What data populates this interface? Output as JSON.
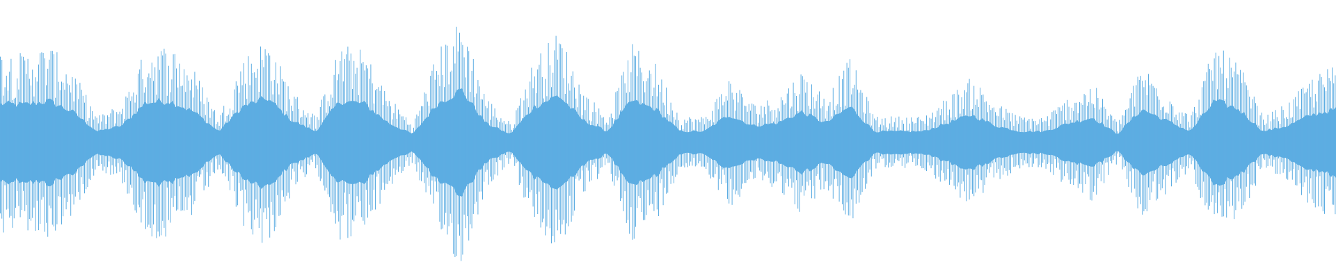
{
  "waveform": {
    "color": "#5dade2",
    "background": "#ffffff",
    "envelope_samples": [
      0.7,
      0.68,
      0.75,
      0.55,
      0.2,
      0.3,
      0.72,
      0.75,
      0.55,
      0.2,
      0.65,
      0.8,
      0.4,
      0.2,
      0.75,
      0.7,
      0.35,
      0.15,
      0.7,
      0.95,
      0.35,
      0.15,
      0.65,
      0.85,
      0.4,
      0.2,
      0.75,
      0.6,
      0.2,
      0.2,
      0.5,
      0.3,
      0.35,
      0.55,
      0.35,
      0.65,
      0.2,
      0.2,
      0.2,
      0.35,
      0.5,
      0.3,
      0.2,
      0.2,
      0.35,
      0.45,
      0.15,
      0.6,
      0.4,
      0.2,
      0.75,
      0.6,
      0.2,
      0.3,
      0.5,
      0.6
    ]
  }
}
